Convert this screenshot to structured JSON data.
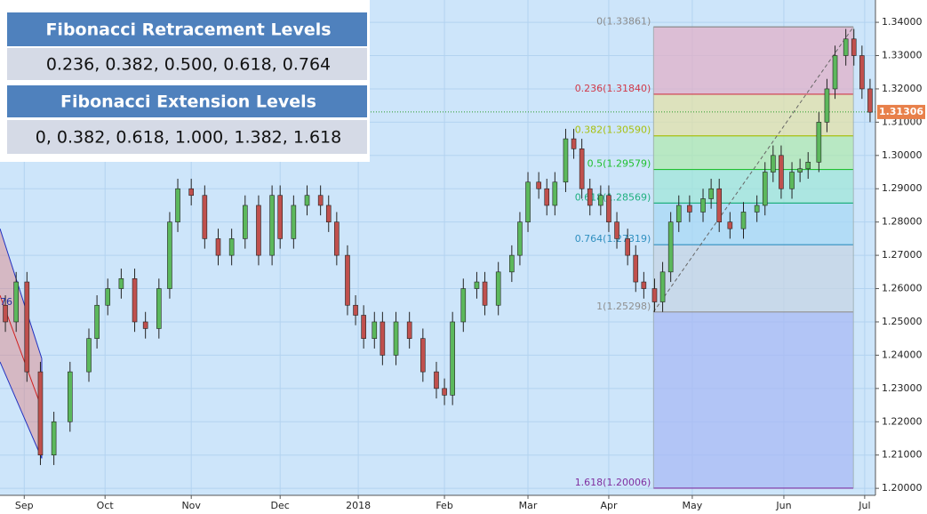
{
  "chart_data": {
    "type": "candlestick",
    "xlim": [
      -9,
      316
    ],
    "ylim": [
      1.1979,
      1.3467
    ],
    "xticks": [
      {
        "value": 0,
        "label": "Sep"
      },
      {
        "value": 30,
        "label": "Oct"
      },
      {
        "value": 62,
        "label": "Nov"
      },
      {
        "value": 95,
        "label": "Dec"
      },
      {
        "value": 124,
        "label": "2018"
      },
      {
        "value": 156,
        "label": "Feb"
      },
      {
        "value": 187,
        "label": "Mar"
      },
      {
        "value": 217,
        "label": "Apr"
      },
      {
        "value": 248,
        "label": "May"
      },
      {
        "value": 282,
        "label": "Jun"
      },
      {
        "value": 312,
        "label": "Jul"
      }
    ],
    "yticks": [
      {
        "value": 1.2,
        "label": "1.20000"
      },
      {
        "value": 1.21,
        "label": "1.21000"
      },
      {
        "value": 1.22,
        "label": "1.22000"
      },
      {
        "value": 1.23,
        "label": "1.23000"
      },
      {
        "value": 1.24,
        "label": "1.24000"
      },
      {
        "value": 1.25,
        "label": "1.25000"
      },
      {
        "value": 1.26,
        "label": "1.26000"
      },
      {
        "value": 1.27,
        "label": "1.27000"
      },
      {
        "value": 1.28,
        "label": "1.28000"
      },
      {
        "value": 1.29,
        "label": "1.29000"
      },
      {
        "value": 1.3,
        "label": "1.30000"
      },
      {
        "value": 1.31,
        "label": "1.31000"
      },
      {
        "value": 1.32,
        "label": "1.32000"
      },
      {
        "value": 1.33,
        "label": "1.33000"
      },
      {
        "value": 1.34,
        "label": "1.34000"
      }
    ],
    "grid": true,
    "up_color": "#5cb85c",
    "down_color": "#c0504d",
    "x": [
      -7,
      -3,
      1,
      6,
      11,
      17,
      24,
      27,
      31,
      36,
      41,
      45,
      50,
      54,
      57,
      62,
      67,
      72,
      77,
      82,
      87,
      92,
      95,
      100,
      105,
      110,
      113,
      116,
      120,
      123,
      126,
      130,
      133,
      138,
      143,
      148,
      153,
      156,
      159,
      163,
      168,
      171,
      176,
      181,
      184,
      187,
      191,
      194,
      197,
      201,
      204,
      207,
      210,
      214,
      217,
      220,
      224,
      227,
      230,
      234,
      237,
      240,
      243,
      247,
      252,
      255,
      258,
      262,
      267,
      272,
      275,
      278,
      281,
      285,
      288,
      291,
      295,
      298,
      301,
      305,
      308,
      311,
      314
    ],
    "open": [
      1.255,
      1.25,
      1.262,
      1.235,
      1.21,
      1.22,
      1.235,
      1.245,
      1.255,
      1.26,
      1.263,
      1.25,
      1.248,
      1.26,
      1.28,
      1.29,
      1.288,
      1.275,
      1.27,
      1.275,
      1.285,
      1.27,
      1.288,
      1.275,
      1.285,
      1.288,
      1.285,
      1.28,
      1.27,
      1.255,
      1.252,
      1.245,
      1.25,
      1.24,
      1.25,
      1.245,
      1.235,
      1.23,
      1.228,
      1.25,
      1.26,
      1.262,
      1.255,
      1.265,
      1.27,
      1.28,
      1.292,
      1.29,
      1.285,
      1.292,
      1.305,
      1.302,
      1.29,
      1.285,
      1.288,
      1.28,
      1.275,
      1.27,
      1.262,
      1.26,
      1.256,
      1.265,
      1.28,
      1.285,
      1.283,
      1.287,
      1.29,
      1.28,
      1.278,
      1.283,
      1.285,
      1.295,
      1.3,
      1.29,
      1.295,
      1.296,
      1.298,
      1.31,
      1.32,
      1.33,
      1.335,
      1.33,
      1.32
    ],
    "high": [
      1.258,
      1.265,
      1.265,
      1.238,
      1.223,
      1.238,
      1.248,
      1.258,
      1.263,
      1.266,
      1.266,
      1.253,
      1.263,
      1.283,
      1.293,
      1.293,
      1.291,
      1.278,
      1.278,
      1.288,
      1.288,
      1.291,
      1.291,
      1.288,
      1.291,
      1.291,
      1.288,
      1.283,
      1.273,
      1.258,
      1.255,
      1.253,
      1.253,
      1.253,
      1.253,
      1.248,
      1.238,
      1.233,
      1.253,
      1.263,
      1.265,
      1.265,
      1.268,
      1.273,
      1.283,
      1.295,
      1.295,
      1.293,
      1.295,
      1.308,
      1.308,
      1.305,
      1.293,
      1.291,
      1.291,
      1.283,
      1.278,
      1.273,
      1.265,
      1.263,
      1.268,
      1.283,
      1.288,
      1.288,
      1.29,
      1.293,
      1.293,
      1.283,
      1.286,
      1.288,
      1.298,
      1.303,
      1.303,
      1.298,
      1.299,
      1.301,
      1.313,
      1.323,
      1.333,
      1.338,
      1.338,
      1.333,
      1.323
    ],
    "low": [
      1.247,
      1.247,
      1.232,
      1.207,
      1.207,
      1.217,
      1.232,
      1.242,
      1.252,
      1.257,
      1.247,
      1.245,
      1.245,
      1.257,
      1.277,
      1.285,
      1.272,
      1.267,
      1.267,
      1.272,
      1.267,
      1.267,
      1.272,
      1.272,
      1.282,
      1.282,
      1.277,
      1.267,
      1.252,
      1.249,
      1.242,
      1.242,
      1.237,
      1.237,
      1.242,
      1.232,
      1.227,
      1.225,
      1.225,
      1.247,
      1.257,
      1.252,
      1.252,
      1.262,
      1.267,
      1.277,
      1.287,
      1.282,
      1.282,
      1.289,
      1.299,
      1.287,
      1.282,
      1.282,
      1.277,
      1.272,
      1.267,
      1.259,
      1.257,
      1.253,
      1.253,
      1.262,
      1.277,
      1.28,
      1.28,
      1.284,
      1.277,
      1.275,
      1.275,
      1.28,
      1.282,
      1.292,
      1.287,
      1.287,
      1.292,
      1.293,
      1.295,
      1.307,
      1.317,
      1.327,
      1.327,
      1.317,
      1.31
    ],
    "close": [
      1.25,
      1.262,
      1.235,
      1.21,
      1.22,
      1.235,
      1.245,
      1.255,
      1.26,
      1.263,
      1.25,
      1.248,
      1.26,
      1.28,
      1.29,
      1.288,
      1.275,
      1.27,
      1.275,
      1.285,
      1.27,
      1.288,
      1.275,
      1.285,
      1.288,
      1.285,
      1.28,
      1.27,
      1.255,
      1.252,
      1.245,
      1.25,
      1.24,
      1.25,
      1.245,
      1.235,
      1.23,
      1.228,
      1.25,
      1.26,
      1.262,
      1.255,
      1.265,
      1.27,
      1.28,
      1.292,
      1.29,
      1.285,
      1.292,
      1.305,
      1.302,
      1.29,
      1.285,
      1.288,
      1.28,
      1.275,
      1.27,
      1.262,
      1.26,
      1.256,
      1.265,
      1.28,
      1.285,
      1.283,
      1.287,
      1.29,
      1.28,
      1.278,
      1.283,
      1.285,
      1.295,
      1.3,
      1.29,
      1.295,
      1.296,
      1.298,
      1.31,
      1.32,
      1.33,
      1.335,
      1.33,
      1.32,
      1.313
    ],
    "fib_x": [
      233.6,
      307.8
    ],
    "fib_levels": [
      {
        "label": "0(1.33861)",
        "value": 1.33861,
        "color": "#8c8c8c",
        "fill": "#e0b0c8"
      },
      {
        "label": "0.236(1.31840)",
        "value": 1.3184,
        "color": "#d03a4a",
        "fill": "#e2e0a8"
      },
      {
        "label": "0.382(1.30590)",
        "value": 1.3059,
        "color": "#a8c010",
        "fill": "#b0e8b0"
      },
      {
        "label": "0.5(1.29579)",
        "value": 1.29579,
        "color": "#20c030",
        "fill": "#a0e6d8"
      },
      {
        "label": "0.618(1.28569)",
        "value": 1.28569,
        "color": "#20b080",
        "fill": "#a8d8f4"
      },
      {
        "label": "0.764(1.27319)",
        "value": 1.27319,
        "color": "#3090c0",
        "fill": "#c6d4e4"
      },
      {
        "label": "1(1.25298)",
        "value": 1.25298,
        "color": "#909090",
        "fill": "#a8baf4"
      },
      {
        "label": "1.618(1.20006)",
        "value": 1.20006,
        "color": "#8030a0"
      }
    ],
    "current_price": {
      "value": 1.31306,
      "label": "1.31306",
      "color": "#e8804a"
    },
    "channel": {
      "x": [
        -9,
        6.5
      ],
      "upper": [
        1.278,
        1.239
      ],
      "middle": [
        1.258,
        1.224
      ],
      "lower": [
        1.238,
        1.209
      ]
    },
    "partial_label": "76",
    "retracement_title": "Fibonacci Retracement Levels",
    "retracement_levels": "0.236, 0.382, 0.500, 0.618, 0.764",
    "extension_title": "Fibonacci Extension Levels",
    "extension_levels": "0, 0.382, 0.618, 1.000, 1.382, 1.618"
  }
}
